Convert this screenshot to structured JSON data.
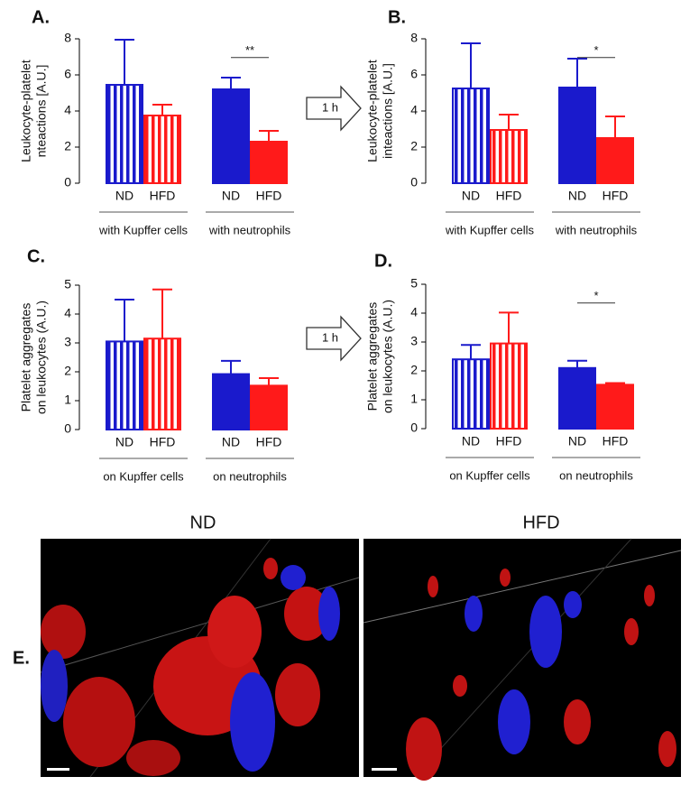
{
  "chart_data": [
    {
      "type": "bar",
      "panel": "A.",
      "y_label": [
        "Leukocyte-platelet",
        "nteactions [A.U.]"
      ],
      "categories": [
        "ND",
        "HFD",
        "ND",
        "HFD"
      ],
      "values": [
        5.45,
        3.75,
        5.2,
        2.3
      ],
      "errors": [
        2.5,
        0.6,
        0.65,
        0.6
      ],
      "colors": [
        "#1a1acc",
        "#ff1a1a",
        "#1a1acc",
        "#ff1a1a"
      ],
      "groups": [
        {
          "label": "with Kupffer cells",
          "hatched": true
        },
        {
          "label": "with neutrophils",
          "hatched": false,
          "significance": "**"
        }
      ],
      "ylim": [
        0,
        8
      ],
      "yticks": [
        0,
        2,
        4,
        6,
        8
      ]
    },
    {
      "type": "bar",
      "panel": "B.",
      "y_label": [
        "Leukocyte-platelet",
        "inteactions [A.U.]"
      ],
      "categories": [
        "ND",
        "HFD",
        "ND",
        "HFD"
      ],
      "values": [
        5.25,
        2.95,
        5.3,
        2.5
      ],
      "errors": [
        2.5,
        0.85,
        1.6,
        1.2
      ],
      "colors": [
        "#1a1acc",
        "#ff1a1a",
        "#1a1acc",
        "#ff1a1a"
      ],
      "groups": [
        {
          "label": "with Kupffer cells",
          "hatched": true
        },
        {
          "label": "with neutrophils",
          "hatched": false,
          "significance": "*"
        }
      ],
      "ylim": [
        0,
        8
      ],
      "yticks": [
        0,
        2,
        4,
        6,
        8
      ]
    },
    {
      "type": "bar",
      "panel": "C.",
      "y_label": [
        "Platelet aggregates",
        "on leukocytes (A.U.)"
      ],
      "categories": [
        "ND",
        "HFD",
        "ND",
        "HFD"
      ],
      "values": [
        3.05,
        3.15,
        1.92,
        1.52
      ],
      "errors": [
        1.45,
        1.7,
        0.46,
        0.26
      ],
      "colors": [
        "#1a1acc",
        "#ff1a1a",
        "#1a1acc",
        "#ff1a1a"
      ],
      "groups": [
        {
          "label": "on Kupffer cells",
          "hatched": true
        },
        {
          "label": "on neutrophils",
          "hatched": false
        }
      ],
      "ylim": [
        0,
        5
      ],
      "yticks": [
        0,
        1,
        2,
        3,
        4,
        5
      ]
    },
    {
      "type": "bar",
      "panel": "D.",
      "y_label": [
        "Platelet aggregates",
        "on leukocytes (A.U.)"
      ],
      "categories": [
        "ND",
        "HFD",
        "ND",
        "HFD"
      ],
      "values": [
        2.4,
        2.95,
        2.1,
        1.52
      ],
      "errors": [
        0.5,
        1.07,
        0.25,
        0.06
      ],
      "colors": [
        "#1a1acc",
        "#ff1a1a",
        "#1a1acc",
        "#ff1a1a"
      ],
      "groups": [
        {
          "label": "on Kupffer cells",
          "hatched": true
        },
        {
          "label": "on neutrophils",
          "hatched": false,
          "significance": "*"
        }
      ],
      "ylim": [
        0,
        5
      ],
      "yticks": [
        0,
        1,
        2,
        3,
        4,
        5
      ]
    }
  ],
  "arrows": [
    "1 h",
    "1 h"
  ],
  "images": {
    "panel": "E.",
    "titles": [
      "ND",
      "HFD"
    ]
  }
}
